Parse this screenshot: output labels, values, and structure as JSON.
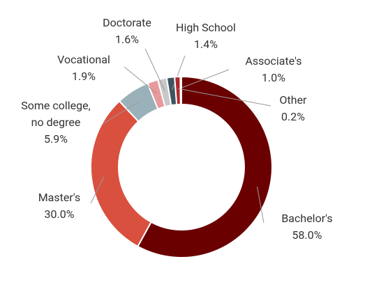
{
  "chart_data": {
    "type": "donut",
    "categories": [
      "Bachelor's",
      "Master's",
      "Some college, no degree",
      "Vocational",
      "Doctorate",
      "High School",
      "Associate's",
      "Other"
    ],
    "values": [
      58.0,
      30.0,
      5.9,
      1.9,
      1.6,
      1.4,
      1.0,
      0.2
    ],
    "value_labels": [
      "58.0%",
      "30.0%",
      "5.9%",
      "1.9%",
      "1.6%",
      "1.4%",
      "1.0%",
      "0.2%"
    ],
    "colors": [
      "#6b0000",
      "#d9503f",
      "#9bb1b9",
      "#e89a9a",
      "#c9c9c9",
      "#3e5560",
      "#b3262a",
      "#e58080"
    ]
  }
}
